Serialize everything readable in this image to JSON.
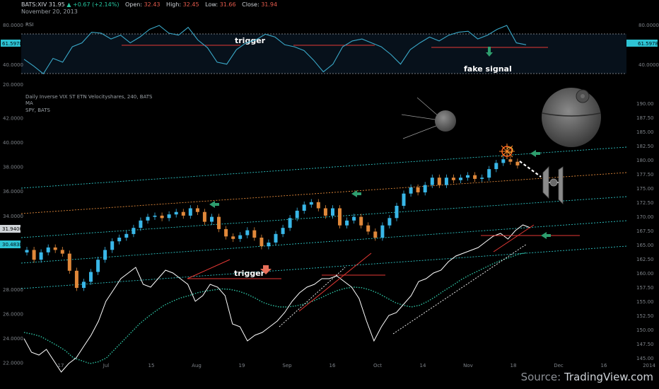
{
  "header": {
    "symbol": "BATS:XIV",
    "last": "31.95",
    "change": "+0.67 (+2.14%)",
    "open_label": "Open:",
    "open": "32.43",
    "high_label": "High:",
    "high": "32.45",
    "low_label": "Low:",
    "low": "31.66",
    "close_label": "Close:",
    "close": "31.94",
    "date": "November 20, 2013"
  },
  "source": {
    "prefix": "Source:",
    "brand": "TradingView.com"
  },
  "colors": {
    "background": "#000000",
    "rsi_line": "#3aa8c8",
    "spy_line": "#ffffff",
    "ma_line": "#2ec4a4",
    "up_candle": "#39b7e8",
    "down_candle": "#e0883a",
    "red_line": "#e53935",
    "green_arrow": "#2e9e6e",
    "red_arrow": "#e8705a",
    "channel_teal": "#2ec4c4",
    "channel_orange": "#e0883a"
  },
  "chart_data": [
    {
      "type": "line",
      "title": "RSI",
      "ylim": [
        20,
        80
      ],
      "yticks": [
        "80.0000",
        "40.0000",
        "20.0000"
      ],
      "yticks_right": [
        "80.0000",
        "40.0000"
      ],
      "current_label": "61.5978",
      "annotations": [
        "trigger",
        "fake signal"
      ],
      "series": [
        {
          "values": [
            45,
            38,
            30,
            46,
            42,
            58,
            62,
            73,
            72,
            66,
            70,
            62,
            68,
            76,
            80,
            72,
            70,
            78,
            65,
            57,
            42,
            40,
            55,
            62,
            65,
            71,
            68,
            60,
            58,
            54,
            44,
            32,
            40,
            58,
            64,
            66,
            62,
            58,
            50,
            40,
            55,
            62,
            68,
            64,
            70,
            73,
            74,
            66,
            70,
            76,
            80,
            62,
            60
          ]
        }
      ]
    },
    {
      "type": "line",
      "title": "Daily Inverse VIX ST ETN Velocityshares, 240, BATS",
      "legend": [
        "MA",
        "SPY, BATS"
      ],
      "left_axis": [
        "42.0000",
        "40.0000",
        "38.0000",
        "36.0000",
        "34.0000",
        "31.9400",
        "30.4838",
        "28.0000",
        "26.0000",
        "24.0000",
        "22.0000"
      ],
      "left_ylim": [
        21,
        43
      ],
      "right_axis": [
        "190.00",
        "187.50",
        "185.00",
        "182.50",
        "180.00",
        "177.50",
        "175.00",
        "172.50",
        "170.00",
        "167.50",
        "165.00",
        "162.50",
        "160.00",
        "157.50",
        "155.00",
        "152.50",
        "150.00",
        "147.50",
        "145.00"
      ],
      "right_ylim": [
        144,
        191
      ],
      "x_ticks": [
        "17",
        "Jul",
        "15",
        "Aug",
        "19",
        "Sep",
        "16",
        "Oct",
        "14",
        "Nov",
        "18",
        "Dec",
        "16",
        "2014"
      ],
      "annotations": [
        "trigger"
      ],
      "series": [
        {
          "name": "XIV",
          "values": [
            31.2,
            30.4,
            31.0,
            31.4,
            31.2,
            30.9,
            29.5,
            28.1,
            28.6,
            29.4,
            30.4,
            31.2,
            31.9,
            32.2,
            32.5,
            33.0,
            33.6,
            33.9,
            34.0,
            33.8,
            34.1,
            34.3,
            34.0,
            34.6,
            34.3,
            33.5,
            33.9,
            32.9,
            32.3,
            32.1,
            32.4,
            32.8,
            32.2,
            31.5,
            31.8,
            32.5,
            33.0,
            33.8,
            34.4,
            34.9,
            35.1,
            34.6,
            34.0,
            34.6,
            33.2,
            33.6,
            33.9,
            33.2,
            32.7,
            32.2,
            33.2,
            33.8,
            34.8,
            35.8,
            36.3,
            35.9,
            36.5,
            37.1,
            36.5,
            37.1,
            36.9,
            37.1,
            37.3,
            37.0,
            37.1,
            37.8,
            38.3,
            38.6,
            38.4,
            38.1
          ]
        },
        {
          "name": "SPY, BATS",
          "values": [
            148.4,
            146.0,
            145.5,
            146.5,
            144.5,
            142.5,
            144.0,
            145.0,
            147.0,
            149.0,
            151.5,
            155.0,
            157.0,
            159.0,
            160.0,
            161.0,
            158.0,
            157.5,
            159.0,
            160.5,
            160.0,
            159.0,
            158.0,
            155.0,
            156.0,
            158.0,
            157.5,
            156.0,
            151.0,
            150.5,
            148.0,
            149.0,
            149.5,
            150.5,
            151.5,
            153.0,
            155.0,
            156.5,
            157.5,
            158.0,
            159.0,
            159.0,
            159.5,
            158.5,
            157.5,
            155.5,
            151.5,
            148.0,
            150.5,
            152.5,
            153.0,
            154.5,
            156.0,
            158.5,
            159.0,
            160.0,
            160.5,
            162.0,
            163.0,
            163.5,
            164.0,
            164.5,
            165.5,
            166.5,
            167.0,
            166.0,
            167.5,
            168.5,
            168.0
          ]
        },
        {
          "name": "MA",
          "values": [
            149.5,
            149.2,
            148.8,
            148.0,
            147.2,
            146.3,
            145.0,
            144.5,
            144.0,
            144.3,
            145.0,
            146.5,
            148.0,
            149.5,
            151.0,
            152.2,
            153.3,
            154.3,
            155.0,
            155.6,
            156.0,
            156.5,
            156.8,
            157.0,
            157.2,
            157.1,
            156.8,
            156.3,
            155.6,
            154.8,
            154.3,
            154.0,
            154.0,
            154.2,
            154.5,
            155.0,
            155.6,
            156.3,
            156.9,
            157.3,
            157.5,
            157.4,
            157.0,
            156.4,
            155.6,
            154.8,
            154.3,
            154.0,
            154.3,
            155.0,
            155.9,
            156.9,
            157.8,
            158.8,
            159.6,
            160.3,
            161.0,
            161.7,
            162.3,
            162.8,
            163.3,
            163.6
          ]
        }
      ]
    }
  ]
}
